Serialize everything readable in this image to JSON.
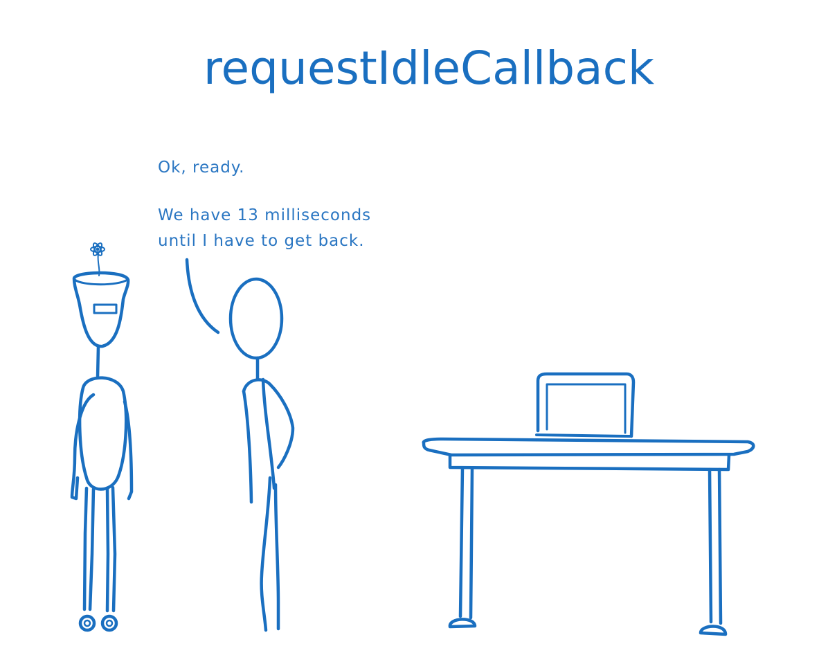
{
  "title": "requestIdleCallback",
  "speech": {
    "line1": "Ok, ready.",
    "line2": "We have 13 milliseconds",
    "line3": "until I have to get back."
  },
  "colors": {
    "ink": "#1a6fc0",
    "background": "#ffffff"
  },
  "figures": {
    "robot": "robot-figure",
    "person": "person-figure",
    "desk": "desk-with-laptop"
  }
}
